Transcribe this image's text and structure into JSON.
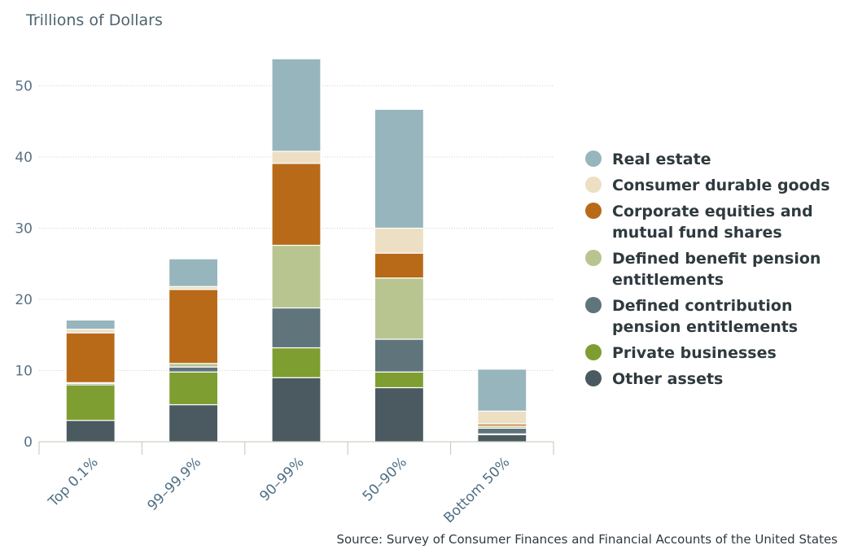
{
  "chart_data": {
    "type": "bar",
    "stacked": true,
    "ylabel": "Trillions of Dollars",
    "ylim": [
      0,
      55
    ],
    "yticks": [
      0,
      10,
      20,
      30,
      40,
      50
    ],
    "grid": true,
    "legend_position": "right",
    "categories": [
      "Top 0.1%",
      "99–99.9%",
      "90–99%",
      "50–90%",
      "Bottom 50%"
    ],
    "series": [
      {
        "name": "Other assets",
        "color": "#4a5a60",
        "values": [
          3.0,
          5.2,
          9.0,
          7.6,
          1.0
        ]
      },
      {
        "name": "Private businesses",
        "color": "#7f9e31",
        "values": [
          5.0,
          4.6,
          4.2,
          2.2,
          0.1
        ]
      },
      {
        "name": "Defined contribution pension entitlements",
        "color": "#5f747b",
        "values": [
          0.2,
          0.7,
          5.6,
          4.6,
          0.8
        ]
      },
      {
        "name": "Defined benefit pension entitlements",
        "color": "#b8c590",
        "values": [
          0.1,
          0.5,
          8.8,
          8.6,
          0.3
        ]
      },
      {
        "name": "Corporate equities and mutual fund shares",
        "color": "#b86a18",
        "values": [
          7.0,
          10.4,
          11.5,
          3.5,
          0.3
        ]
      },
      {
        "name": "Consumer durable goods",
        "color": "#ecdfc4",
        "values": [
          0.5,
          0.4,
          1.7,
          3.5,
          1.8
        ]
      },
      {
        "name": "Real estate",
        "color": "#97b5bc",
        "values": [
          1.3,
          3.9,
          13.0,
          16.7,
          5.9
        ]
      }
    ],
    "legend_entries": [
      {
        "lines": [
          "Real estate"
        ],
        "color": "#97b5bc"
      },
      {
        "lines": [
          "Consumer durable goods"
        ],
        "color": "#ecdfc4"
      },
      {
        "lines": [
          "Corporate equities and",
          "mutual fund shares"
        ],
        "color": "#b86a18"
      },
      {
        "lines": [
          "Defined benefit pension",
          "entitlements"
        ],
        "color": "#b8c590"
      },
      {
        "lines": [
          "Defined contribution",
          "pension entitlements"
        ],
        "color": "#5f747b"
      },
      {
        "lines": [
          "Private businesses"
        ],
        "color": "#7f9e31"
      },
      {
        "lines": [
          "Other assets"
        ],
        "color": "#4a5a60"
      }
    ]
  },
  "source": "Source: Survey of Consumer Finances and Financial Accounts of the United States"
}
